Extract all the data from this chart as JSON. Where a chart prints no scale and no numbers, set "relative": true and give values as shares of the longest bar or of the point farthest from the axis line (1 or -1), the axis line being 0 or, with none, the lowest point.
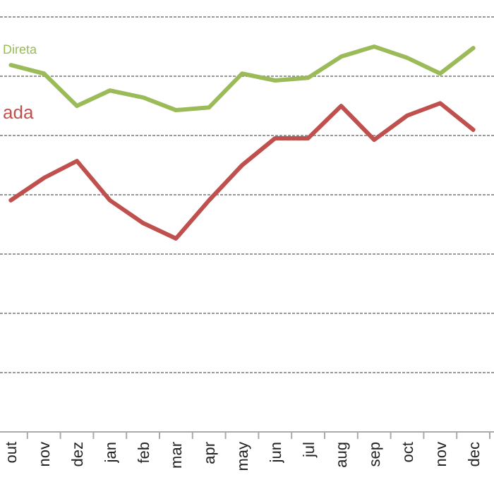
{
  "chart_data": {
    "type": "line",
    "relative": true,
    "grid": "y",
    "legend": false,
    "categories": [
      "out",
      "nov",
      "dez",
      "jan",
      "feb",
      "mar",
      "apr",
      "may",
      "jun",
      "jul",
      "aug",
      "sep",
      "oct",
      "nov",
      "dec"
    ],
    "series": [
      {
        "name": "Direta",
        "color": "#9bbb59",
        "values": [
          0.952,
          0.93,
          0.846,
          0.886,
          0.868,
          0.835,
          0.842,
          0.93,
          0.912,
          0.919,
          0.974,
          1,
          0.971,
          0.93,
          0.996
        ]
      },
      {
        "name": "ada",
        "color": "#c0504d",
        "values": [
          0.601,
          0.659,
          0.703,
          0.601,
          0.542,
          0.502,
          0.601,
          0.692,
          0.762,
          0.762,
          0.846,
          0.758,
          0.821,
          0.853,
          0.784
        ]
      }
    ]
  }
}
